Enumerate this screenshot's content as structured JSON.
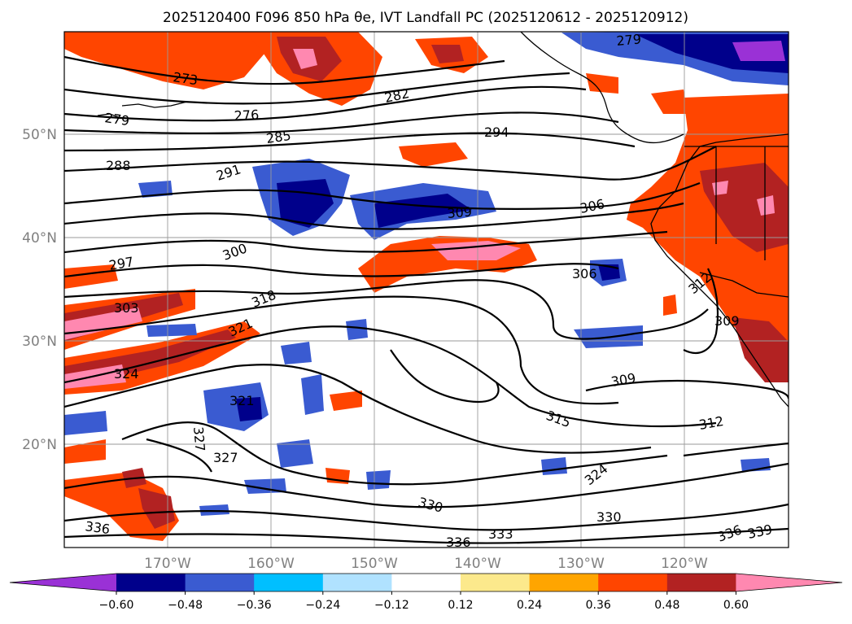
{
  "title": "2025120400 F096 850 hPa θe, IVT Landfall PC (2025120612 - 2025120912)",
  "latitude_labels": [
    "50°N",
    "40°N",
    "30°N",
    "20°N"
  ],
  "longitude_labels": [
    "170°W",
    "160°W",
    "150°W",
    "140°W",
    "130°W",
    "120°W"
  ],
  "contour_labels": [
    "273",
    "276",
    "279",
    "282",
    "285",
    "288",
    "291",
    "294",
    "297",
    "300",
    "303",
    "306",
    "309",
    "306",
    "309",
    "312",
    "315",
    "318",
    "321",
    "321",
    "324",
    "324",
    "327",
    "327",
    "330",
    "330",
    "333",
    "336",
    "336",
    "339",
    "309",
    "312"
  ],
  "colorbar": {
    "tick_labels": [
      "−0.60",
      "−0.48",
      "−0.36",
      "−0.24",
      "−0.12",
      "0.12",
      "0.24",
      "0.36",
      "0.48",
      "0.60"
    ],
    "colors": [
      "#9a31d6",
      "#00008b",
      "#3a5bd1",
      "#00bfff",
      "#b0e2ff",
      "#ffffff",
      "#fce98c",
      "#ffa500",
      "#ff4500",
      "#b22222",
      "#ff88b0"
    ],
    "extend": "both"
  }
}
